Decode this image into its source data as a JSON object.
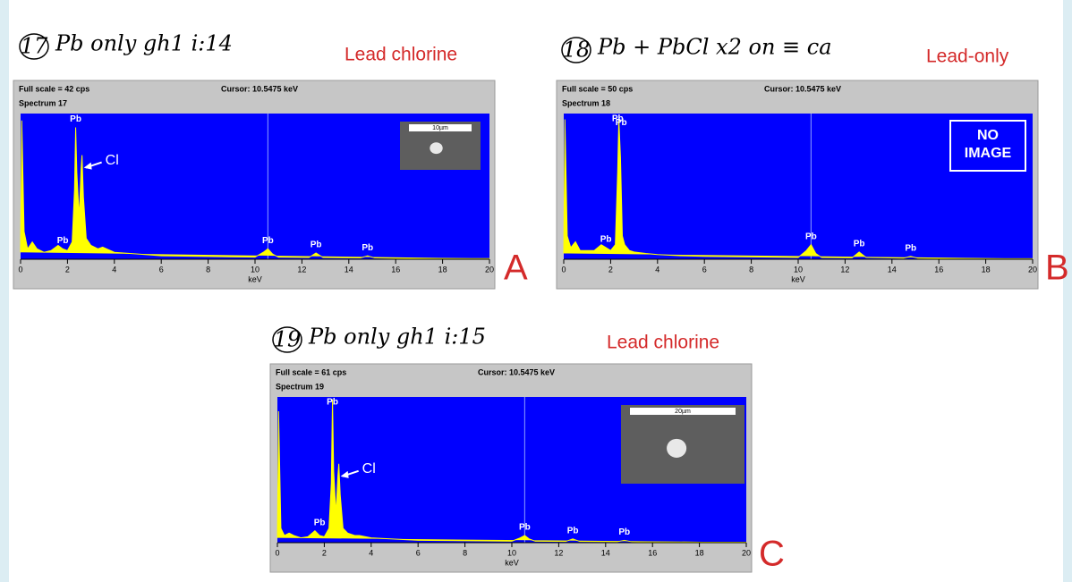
{
  "chart_data": [
    {
      "type": "line",
      "note_number": "17",
      "note": "Pb only gh1 i:14",
      "title": "Lead chlorine",
      "panel_label": "A",
      "full_scale": "Full scale = 42 cps",
      "cursor": {
        "value": 10.5475,
        "label": "Cursor: 10.5475 keV"
      },
      "spectrum_label": "Spectrum 17",
      "x_label": "keV",
      "xlim": [
        0,
        20
      ],
      "ylim": [
        0,
        42
      ],
      "xticks": [
        0,
        2,
        4,
        6,
        8,
        10,
        12,
        14,
        16,
        18,
        20
      ],
      "color": "#ffff00",
      "background": "#0000ff",
      "x": [
        0,
        0.05,
        0.15,
        0.3,
        0.5,
        0.7,
        1,
        1.3,
        1.6,
        1.8,
        2.0,
        2.2,
        2.3,
        2.35,
        2.4,
        2.5,
        2.58,
        2.62,
        2.68,
        2.8,
        3.0,
        3.3,
        3.5,
        4,
        5,
        6,
        8,
        10,
        10.35,
        10.55,
        10.75,
        11,
        12.3,
        12.6,
        12.9,
        14.5,
        14.8,
        15.1,
        16,
        18,
        20
      ],
      "values": [
        2,
        40,
        8,
        3,
        5,
        3,
        2,
        2.5,
        4,
        3,
        2.5,
        5,
        20,
        38,
        25,
        12,
        26,
        30,
        18,
        6,
        4,
        3,
        3.5,
        2,
        1.5,
        1,
        0.8,
        0.6,
        2,
        3,
        1.5,
        0.6,
        0.5,
        1.8,
        0.5,
        0.4,
        1,
        0.4,
        0.3,
        0.2,
        0.2
      ],
      "annotations": [
        {
          "text": "Pb",
          "x": 2.35,
          "y": 38
        },
        {
          "text": "Cl",
          "x": 2.62,
          "y": 30
        },
        {
          "text": "Pb",
          "x": 1.8,
          "y": 3
        },
        {
          "text": "Pb",
          "x": 10.55,
          "y": 3
        },
        {
          "text": "Pb",
          "x": 12.6,
          "y": 1.8
        },
        {
          "text": "Pb",
          "x": 14.8,
          "y": 1
        }
      ],
      "inset": "10µm"
    },
    {
      "type": "line",
      "note_number": "18",
      "note": "Pb + PbCl x2 on ≡ ca",
      "title": "Lead-only",
      "panel_label": "B",
      "full_scale": "Full scale = 50 cps",
      "cursor": {
        "value": 10.5475,
        "label": "Cursor: 10.5475 keV"
      },
      "spectrum_label": "Spectrum 18",
      "x_label": "keV",
      "xlim": [
        0,
        20
      ],
      "ylim": [
        0,
        50
      ],
      "xticks": [
        0,
        2,
        4,
        6,
        8,
        10,
        12,
        14,
        16,
        18,
        20
      ],
      "color": "#ffff00",
      "background": "#0000ff",
      "x": [
        0,
        0.05,
        0.15,
        0.3,
        0.5,
        0.7,
        1,
        1.3,
        1.6,
        1.8,
        2.0,
        2.2,
        2.3,
        2.35,
        2.42,
        2.5,
        2.6,
        2.8,
        3.0,
        3.5,
        4,
        5,
        6,
        8,
        10,
        10.35,
        10.55,
        10.75,
        11,
        12.3,
        12.6,
        12.9,
        14.5,
        14.8,
        15.1,
        16,
        18,
        20
      ],
      "values": [
        2,
        48,
        8,
        4,
        6,
        3,
        3,
        3,
        5,
        4,
        3,
        5,
        30,
        48,
        35,
        8,
        5,
        3,
        2.5,
        2,
        1.6,
        1.2,
        1,
        0.8,
        0.6,
        3,
        5,
        2,
        0.6,
        0.5,
        2.5,
        0.6,
        0.4,
        1,
        0.4,
        0.3,
        0.2,
        0.2
      ],
      "annotations": [
        {
          "text": "Pb",
          "x": 2.3,
          "y": 48
        },
        {
          "text": "Pb",
          "x": 2.45,
          "y": 44
        },
        {
          "text": "Pb",
          "x": 1.8,
          "y": 4
        },
        {
          "text": "Pb",
          "x": 10.55,
          "y": 5
        },
        {
          "text": "Pb",
          "x": 12.6,
          "y": 2.5
        },
        {
          "text": "Pb",
          "x": 14.8,
          "y": 1
        }
      ],
      "inset": [
        "NO",
        "IMAGE"
      ]
    },
    {
      "type": "line",
      "note_number": "19",
      "note": "Pb only gh1 i:15",
      "title": "Lead chlorine",
      "panel_label": "C",
      "full_scale": "Full scale = 61 cps",
      "cursor": {
        "value": 10.5475,
        "label": "Cursor: 10.5475 keV"
      },
      "spectrum_label": "Spectrum 19",
      "x_label": "keV",
      "xlim": [
        0,
        20
      ],
      "ylim": [
        0,
        61
      ],
      "xticks": [
        0,
        2,
        4,
        6,
        8,
        10,
        12,
        14,
        16,
        18,
        20
      ],
      "color": "#ffff00",
      "background": "#0000ff",
      "x": [
        0,
        0.05,
        0.15,
        0.3,
        0.5,
        0.7,
        1,
        1.3,
        1.6,
        1.8,
        2.0,
        2.2,
        2.3,
        2.35,
        2.4,
        2.5,
        2.58,
        2.62,
        2.68,
        2.8,
        3.0,
        3.3,
        3.5,
        4,
        5,
        6,
        8,
        10,
        10.35,
        10.55,
        10.75,
        11,
        12.3,
        12.6,
        12.9,
        14.5,
        14.8,
        15.1,
        16,
        18,
        20
      ],
      "values": [
        2,
        55,
        6,
        3,
        4,
        3,
        2,
        2.5,
        5,
        3,
        2.5,
        6,
        25,
        60,
        30,
        12,
        28,
        33,
        20,
        6,
        4,
        3,
        3,
        2,
        1.5,
        1,
        0.8,
        0.6,
        2,
        3,
        1.5,
        0.6,
        0.5,
        1.6,
        0.5,
        0.4,
        1,
        0.4,
        0.3,
        0.2,
        0.2
      ],
      "annotations": [
        {
          "text": "Pb",
          "x": 2.35,
          "y": 60
        },
        {
          "text": "Cl",
          "x": 2.62,
          "y": 33
        },
        {
          "text": "Pb",
          "x": 1.8,
          "y": 5
        },
        {
          "text": "Pb",
          "x": 10.55,
          "y": 3
        },
        {
          "text": "Pb",
          "x": 12.6,
          "y": 1.6
        },
        {
          "text": "Pb",
          "x": 14.8,
          "y": 1
        }
      ],
      "inset": "20µm"
    }
  ]
}
